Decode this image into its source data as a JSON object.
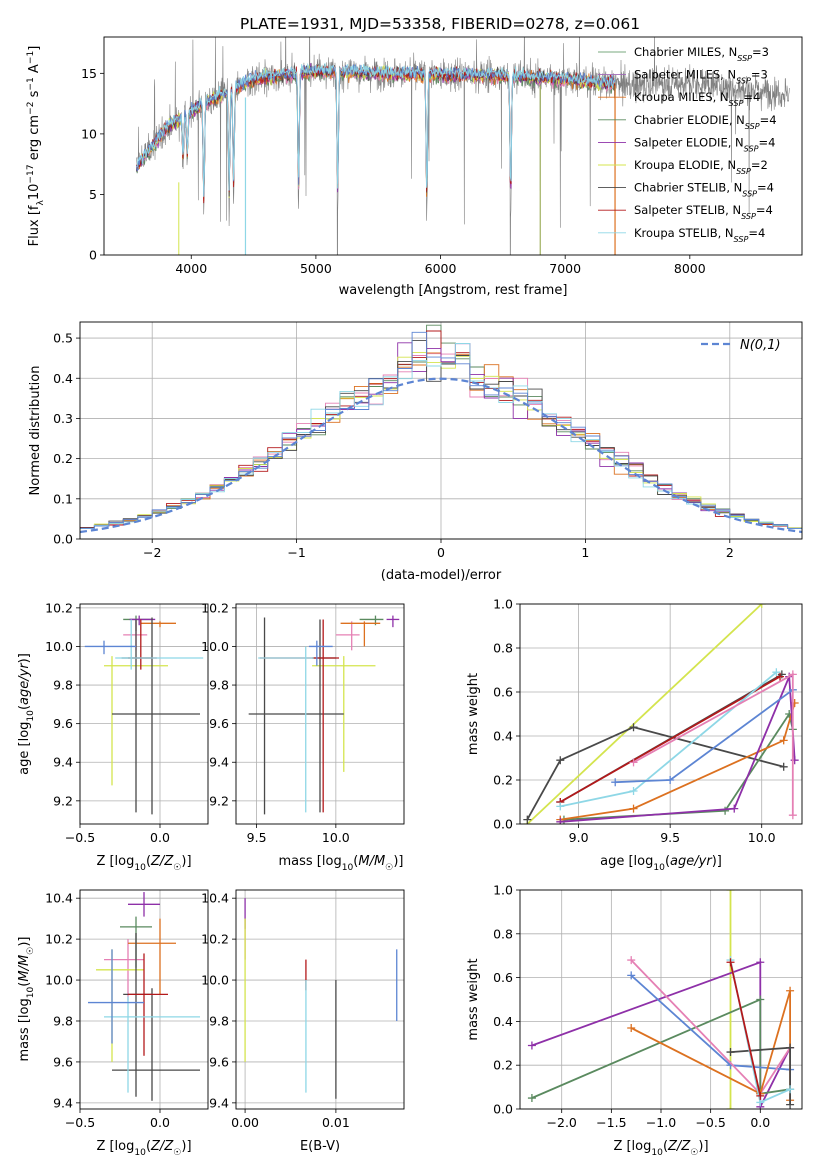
{
  "title": "PLATE=1931, MJD=53358, FIBERID=0278, z=0.061",
  "colors": [
    "#5a8a5f",
    "#e580b4",
    "#dc7120",
    "#c0533d",
    "#8e30a8",
    "#d4e44e",
    "#494949",
    "#b3191b",
    "#8ed7e6",
    "#5d85d3"
  ],
  "models": [
    {
      "label": "Chabrier MILES, N_SSP=3",
      "name": "Chabrier MILES",
      "nssp": "3",
      "color": "#5a8a5f"
    },
    {
      "label": "Salpeter MILES, N_SSP=3",
      "name": "Salpeter MILES",
      "nssp": "3",
      "color": "#e580b4"
    },
    {
      "label": "Kroupa MILES, N_SSP=4",
      "name": "Kroupa MILES",
      "nssp": "4",
      "color": "#dc7120"
    },
    {
      "label": "Chabrier ELODIE, N_SSP=4",
      "name": "Chabrier ELODIE",
      "nssp": "4",
      "color": "#5a8a5f"
    },
    {
      "label": "Salpeter ELODIE, N_SSP=4",
      "name": "Salpeter ELODIE",
      "nssp": "4",
      "color": "#8e30a8"
    },
    {
      "label": "Kroupa ELODIE, N_SSP=2",
      "name": "Kroupa ELODIE",
      "nssp": "2",
      "color": "#d4e44e"
    },
    {
      "label": "Chabrier STELIB, N_SSP=4",
      "name": "Chabrier STELIB",
      "nssp": "4",
      "color": "#494949"
    },
    {
      "label": "Salpeter STELIB, N_SSP=4",
      "name": "Salpeter STELIB",
      "nssp": "4",
      "color": "#b3191b"
    },
    {
      "label": "Kroupa STELIB, N_SSP=4",
      "name": "Kroupa STELIB",
      "nssp": "4",
      "color": "#8ed7e6"
    }
  ],
  "chart_data": [
    {
      "id": "spectrum",
      "type": "line",
      "xlabel": "wavelength [Angstrom, rest frame]",
      "ylabel": "Flux [f_λ 10^-17 erg cm^-2 s^-1 A^-1]",
      "xlim": [
        3300,
        8900
      ],
      "ylim": [
        0,
        18
      ],
      "xticks": [
        4000,
        5000,
        6000,
        7000,
        8000
      ],
      "yticks": [
        0,
        5,
        10,
        15
      ],
      "continuum": [
        [
          3560,
          7.2
        ],
        [
          3650,
          8.5
        ],
        [
          3800,
          10.5
        ],
        [
          3950,
          11.5
        ],
        [
          4100,
          12.5
        ],
        [
          4300,
          13.5
        ],
        [
          4500,
          14.5
        ],
        [
          5000,
          15.2
        ],
        [
          5500,
          15.0
        ],
        [
          6000,
          14.9
        ],
        [
          6500,
          14.8
        ],
        [
          7000,
          14.5
        ],
        [
          7500,
          14.0
        ],
        [
          8000,
          14.2
        ],
        [
          8500,
          13.6
        ],
        [
          8800,
          13.3
        ]
      ],
      "data_range": [
        3560,
        8800
      ],
      "model_range": [
        3560,
        7400
      ],
      "absorption": [
        [
          3934,
          4
        ],
        [
          3968,
          4
        ],
        [
          4101,
          9.5
        ],
        [
          4304,
          10
        ],
        [
          4340,
          9
        ],
        [
          4861,
          11
        ],
        [
          5175,
          11.5
        ],
        [
          5890,
          12
        ],
        [
          6563,
          11.8
        ]
      ]
    },
    {
      "id": "residuals",
      "type": "step",
      "xlabel": "(data-model)/error",
      "ylabel": "Normed distribution",
      "xlim": [
        -2.5,
        2.5
      ],
      "ylim": [
        0,
        0.54
      ],
      "xticks": [
        -2,
        -1,
        0,
        1,
        2
      ],
      "yticks": [
        0.0,
        0.1,
        0.2,
        0.3,
        0.4,
        0.5
      ],
      "legend": "N(0,1)",
      "legend_position": "top-right",
      "bin_width": 0.1,
      "reference_color": "#5d85d3"
    },
    {
      "id": "age_vs_Z",
      "type": "errorbar",
      "xlabel": "Z [log10(Z/Z☉)]",
      "ylabel": "age [log10(age/yr)]",
      "xlim": [
        -0.5,
        0.3
      ],
      "ylim": [
        9.08,
        10.22
      ],
      "xticks": [
        -0.5,
        0.0
      ],
      "yticks": [
        9.2,
        9.4,
        9.6,
        9.8,
        10.0,
        10.2
      ],
      "points": [
        {
          "x": -0.15,
          "y": 10.14,
          "xerr": [
            0.08,
            0.1
          ],
          "yerr": [
            0.06,
            0.02
          ],
          "color": "#5a8a5f"
        },
        {
          "x": -0.15,
          "y": 10.06,
          "xerr": [
            0.08,
            0.07
          ],
          "yerr": [
            0.08,
            0.07
          ],
          "color": "#e580b4"
        },
        {
          "x": 0.0,
          "y": 10.12,
          "xerr": [
            0.12,
            0.1
          ],
          "yerr": [
            0.02,
            0.01
          ],
          "color": "#dc7120"
        },
        {
          "x": -0.13,
          "y": 10.14,
          "xerr": [
            0.06,
            0.1
          ],
          "yerr": [
            0.03,
            0.02
          ],
          "color": "#8e30a8"
        },
        {
          "x": -0.3,
          "y": 9.9,
          "xerr": [
            0.05,
            0.35
          ],
          "yerr": [
            0.62,
            0.05
          ],
          "color": "#d4e44e"
        },
        {
          "x": -0.15,
          "y": 9.94,
          "xerr": [
            0.09,
            0.1
          ],
          "yerr": [
            0.8,
            0.2
          ],
          "color": "#494949"
        },
        {
          "x": -0.05,
          "y": 9.65,
          "xerr": [
            0.25,
            0.3
          ],
          "yerr": [
            0.52,
            0.5
          ],
          "color": "#494949"
        },
        {
          "x": -0.12,
          "y": 9.94,
          "xerr": [
            0.08,
            0.1
          ],
          "yerr": [
            0.06,
            0.2
          ],
          "color": "#b3191b"
        },
        {
          "x": -0.18,
          "y": 9.94,
          "xerr": [
            0.1,
            0.45
          ],
          "yerr": [
            0.06,
            0.2
          ],
          "color": "#8ed7e6"
        },
        {
          "x": -0.35,
          "y": 10.0,
          "xerr": [
            0.12,
            0.2
          ],
          "yerr": [
            0.04,
            0.03
          ],
          "color": "#5d85d3"
        }
      ]
    },
    {
      "id": "age_vs_mass",
      "type": "errorbar",
      "xlabel": "mass [log10(M/M☉)]",
      "ylabel": "",
      "xlim": [
        9.37,
        10.43
      ],
      "ylim": [
        9.08,
        10.22
      ],
      "xticks": [
        9.5,
        10.0
      ],
      "yticks": [
        9.2,
        9.4,
        9.6,
        9.8,
        10.0,
        10.2
      ],
      "points": [
        {
          "x": 10.25,
          "y": 10.14,
          "xerr": [
            0.1,
            0.05
          ],
          "yerr": [
            0.03,
            0.02
          ],
          "color": "#5a8a5f"
        },
        {
          "x": 10.1,
          "y": 10.06,
          "xerr": [
            0.1,
            0.05
          ],
          "yerr": [
            0.08,
            0.07
          ],
          "color": "#e580b4"
        },
        {
          "x": 10.18,
          "y": 10.12,
          "xerr": [
            0.15,
            0.1
          ],
          "yerr": [
            0.12,
            0.01
          ],
          "color": "#dc7120"
        },
        {
          "x": 10.36,
          "y": 10.14,
          "xerr": [
            0.04,
            0.04
          ],
          "yerr": [
            0.04,
            0.02
          ],
          "color": "#8e30a8"
        },
        {
          "x": 10.05,
          "y": 9.9,
          "xerr": [
            0.2,
            0.2
          ],
          "yerr": [
            0.55,
            0.05
          ],
          "color": "#d4e44e"
        },
        {
          "x": 9.9,
          "y": 9.94,
          "xerr": [
            0.05,
            0.1
          ],
          "yerr": [
            0.8,
            0.2
          ],
          "color": "#494949"
        },
        {
          "x": 9.55,
          "y": 9.65,
          "xerr": [
            0.1,
            0.5
          ],
          "yerr": [
            0.52,
            0.5
          ],
          "color": "#494949"
        },
        {
          "x": 9.92,
          "y": 9.94,
          "xerr": [
            0.4,
            0.1
          ],
          "yerr": [
            0.8,
            0.2
          ],
          "color": "#b3191b"
        },
        {
          "x": 9.81,
          "y": 9.94,
          "xerr": [
            0.3,
            0.05
          ],
          "yerr": [
            0.8,
            0.06
          ],
          "color": "#8ed7e6"
        },
        {
          "x": 9.88,
          "y": 10.0,
          "xerr": [
            0.05,
            0.1
          ],
          "yerr": [
            0.1,
            0.03
          ],
          "color": "#5d85d3"
        }
      ]
    },
    {
      "id": "weight_vs_age",
      "type": "line",
      "xlabel": "age [log10(age/yr)]",
      "ylabel": "mass weight",
      "xlim": [
        8.68,
        10.22
      ],
      "ylim": [
        0,
        1
      ],
      "xticks": [
        9.0,
        9.5,
        10.0
      ],
      "yticks": [
        0.0,
        0.2,
        0.4,
        0.6,
        0.8,
        1.0
      ],
      "series": [
        {
          "color": "#d4e44e",
          "points": [
            [
              8.72,
              0.0
            ],
            [
              10.0,
              1.0
            ]
          ]
        },
        {
          "color": "#494949",
          "points": [
            [
              8.72,
              0.02
            ],
            [
              8.9,
              0.29
            ],
            [
              9.3,
              0.44
            ],
            [
              10.12,
              0.26
            ]
          ]
        },
        {
          "color": "#494949",
          "points": [
            [
              8.9,
              0.1
            ],
            [
              10.11,
              0.68
            ]
          ]
        },
        {
          "color": "#b3191b",
          "points": [
            [
              8.9,
              0.1
            ],
            [
              10.1,
              0.67
            ]
          ]
        },
        {
          "color": "#8ed7e6",
          "points": [
            [
              8.9,
              0.08
            ],
            [
              9.3,
              0.15
            ],
            [
              10.08,
              0.69
            ]
          ]
        },
        {
          "color": "#5a8a5f",
          "points": [
            [
              8.92,
              0.02
            ],
            [
              9.8,
              0.06
            ],
            [
              10.15,
              0.5
            ],
            [
              10.17,
              0.43
            ]
          ]
        },
        {
          "color": "#dc7120",
          "points": [
            [
              8.9,
              0.02
            ],
            [
              9.3,
              0.07
            ],
            [
              10.12,
              0.38
            ],
            [
              10.18,
              0.55
            ]
          ]
        },
        {
          "color": "#8e30a8",
          "points": [
            [
              8.9,
              0.01
            ],
            [
              9.85,
              0.07
            ],
            [
              10.15,
              0.67
            ],
            [
              10.18,
              0.29
            ]
          ]
        },
        {
          "color": "#5d85d3",
          "points": [
            [
              9.2,
              0.19
            ],
            [
              9.5,
              0.2
            ],
            [
              10.17,
              0.61
            ]
          ]
        },
        {
          "color": "#e580b4",
          "points": [
            [
              9.3,
              0.28
            ],
            [
              10.17,
              0.68
            ],
            [
              10.17,
              0.04
            ]
          ]
        }
      ]
    },
    {
      "id": "mass_vs_Z",
      "type": "errorbar",
      "xlabel": "Z [log10(Z/Z☉)]",
      "ylabel": "mass [log10(M/M☉)]",
      "xlim": [
        -0.5,
        0.3
      ],
      "ylim": [
        9.37,
        10.44
      ],
      "xticks": [
        -0.5,
        0.0
      ],
      "yticks": [
        9.4,
        9.6,
        9.8,
        10.0,
        10.2,
        10.4
      ],
      "points": [
        {
          "x": -0.15,
          "y": 10.26,
          "xerr": [
            0.1,
            0.1
          ],
          "yerr": [
            0.2,
            0.05
          ],
          "color": "#5a8a5f"
        },
        {
          "x": -0.2,
          "y": 10.1,
          "xerr": [
            0.15,
            0.1
          ],
          "yerr": [
            0.2,
            0.1
          ],
          "color": "#e580b4"
        },
        {
          "x": 0.0,
          "y": 10.18,
          "xerr": [
            0.2,
            0.1
          ],
          "yerr": [
            0.25,
            0.12
          ],
          "color": "#dc7120"
        },
        {
          "x": -0.1,
          "y": 10.37,
          "xerr": [
            0.1,
            0.1
          ],
          "yerr": [
            0.06,
            0.06
          ],
          "color": "#8e30a8"
        },
        {
          "x": -0.3,
          "y": 10.05,
          "xerr": [
            0.1,
            0.2
          ],
          "yerr": [
            0.45,
            0.1
          ],
          "color": "#d4e44e"
        },
        {
          "x": -0.15,
          "y": 9.93,
          "xerr": [
            0.08,
            0.1
          ],
          "yerr": [
            0.5,
            0.3
          ],
          "color": "#494949"
        },
        {
          "x": -0.05,
          "y": 9.56,
          "xerr": [
            0.25,
            0.3
          ],
          "yerr": [
            0.15,
            0.4
          ],
          "color": "#494949"
        },
        {
          "x": -0.1,
          "y": 9.93,
          "xerr": [
            0.1,
            0.15
          ],
          "yerr": [
            0.3,
            0.2
          ],
          "color": "#b3191b"
        },
        {
          "x": -0.2,
          "y": 9.82,
          "xerr": [
            0.15,
            0.45
          ],
          "yerr": [
            0.37,
            0.1
          ],
          "color": "#8ed7e6"
        },
        {
          "x": -0.3,
          "y": 9.89,
          "xerr": [
            0.15,
            0.2
          ],
          "yerr": [
            0.2,
            0.26
          ],
          "color": "#5d85d3"
        }
      ]
    },
    {
      "id": "mass_vs_ebv",
      "type": "errorbar",
      "xlabel": "E(B-V)",
      "ylabel": "",
      "xlim": [
        -0.001,
        0.0175
      ],
      "ylim": [
        9.37,
        10.44
      ],
      "xticks": [
        0.0,
        0.01
      ],
      "yticks": [
        9.4,
        9.6,
        9.8,
        10.0,
        10.2,
        10.4
      ],
      "points": [
        {
          "x": 0.0,
          "y": 10.3,
          "yerr": [
            0.05,
            0.1
          ],
          "color": "#8e30a8"
        },
        {
          "x": 0.0,
          "y": 10.2,
          "yerr": [
            0.1,
            0.1
          ],
          "color": "#e580b4"
        },
        {
          "x": 0.0,
          "y": 9.8,
          "yerr": [
            0.2,
            0.5
          ],
          "color": "#d4e44e"
        },
        {
          "x": 0.0067,
          "y": 10.0,
          "yerr": [
            0.05,
            0.1
          ],
          "color": "#b3191b"
        },
        {
          "x": 0.0067,
          "y": 9.75,
          "yerr": [
            0.3,
            0.25
          ],
          "color": "#8ed7e6"
        },
        {
          "x": 0.01,
          "y": 9.7,
          "yerr": [
            0.28,
            0.3
          ],
          "color": "#494949"
        },
        {
          "x": 0.0167,
          "y": 10.0,
          "yerr": [
            0.2,
            0.15
          ],
          "color": "#5d85d3"
        }
      ]
    },
    {
      "id": "weight_vs_Z",
      "type": "line",
      "xlabel": "Z [log10(Z/Z☉)]",
      "ylabel": "mass weight",
      "xlim": [
        -2.42,
        0.42
      ],
      "ylim": [
        0,
        1
      ],
      "xticks": [
        -2.0,
        -1.5,
        -1.0,
        -0.5,
        0.0
      ],
      "yticks": [
        0.0,
        0.2,
        0.4,
        0.6,
        0.8,
        1.0
      ],
      "series": [
        {
          "color": "#d4e44e",
          "points": [
            [
              -0.3,
              0.0
            ],
            [
              -0.3,
              1.0
            ]
          ]
        },
        {
          "color": "#8e30a8",
          "points": [
            [
              -2.3,
              0.29
            ],
            [
              0.0,
              0.67
            ],
            [
              0.0,
              0.01
            ],
            [
              0.3,
              0.28
            ]
          ]
        },
        {
          "color": "#5a8a5f",
          "points": [
            [
              -2.3,
              0.05
            ],
            [
              0.0,
              0.5
            ],
            [
              0.0,
              0.07
            ],
            [
              0.3,
              0.09
            ]
          ]
        },
        {
          "color": "#5d85d3",
          "points": [
            [
              -1.3,
              0.61
            ],
            [
              -0.3,
              0.2
            ],
            [
              0.3,
              0.18
            ]
          ]
        },
        {
          "color": "#e580b4",
          "points": [
            [
              -1.3,
              0.68
            ],
            [
              0.0,
              0.07
            ],
            [
              0.3,
              0.28
            ]
          ]
        },
        {
          "color": "#dc7120",
          "points": [
            [
              -1.3,
              0.37
            ],
            [
              0.0,
              0.07
            ],
            [
              0.3,
              0.54
            ],
            [
              0.3,
              0.04
            ]
          ]
        },
        {
          "color": "#494949",
          "points": [
            [
              -0.3,
              0.26
            ],
            [
              0.3,
              0.28
            ],
            [
              0.3,
              0.02
            ]
          ]
        },
        {
          "color": "#8ed7e6",
          "points": [
            [
              -0.3,
              0.68
            ],
            [
              0.0,
              0.03
            ],
            [
              0.3,
              0.09
            ]
          ]
        },
        {
          "color": "#b3191b",
          "points": [
            [
              -0.3,
              0.67
            ],
            [
              0.0,
              0.06
            ]
          ]
        }
      ]
    }
  ]
}
